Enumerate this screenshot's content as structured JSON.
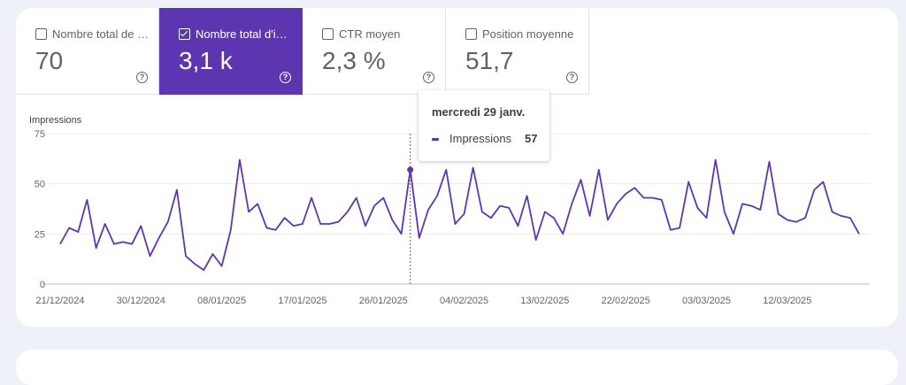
{
  "metrics": [
    {
      "label": "Nombre total de c…",
      "value": "70",
      "active": false
    },
    {
      "label": "Nombre total d'im…",
      "value": "3,1 k",
      "active": true
    },
    {
      "label": "CTR moyen",
      "value": "2,3 %",
      "active": false
    },
    {
      "label": "Position moyenne",
      "value": "51,7",
      "active": false
    }
  ],
  "chart_data": {
    "type": "line",
    "ylabel": "Impressions",
    "ylim": [
      0,
      75
    ],
    "yticks": [
      "0",
      "25",
      "50",
      "75"
    ],
    "xticks": [
      {
        "label": "21/12/2024",
        "index": 0
      },
      {
        "label": "30/12/2024",
        "index": 9
      },
      {
        "label": "08/01/2025",
        "index": 18
      },
      {
        "label": "17/01/2025",
        "index": 27
      },
      {
        "label": "26/01/2025",
        "index": 36
      },
      {
        "label": "04/02/2025",
        "index": 45
      },
      {
        "label": "13/02/2025",
        "index": 54
      },
      {
        "label": "22/02/2025",
        "index": 63
      },
      {
        "label": "03/03/2025",
        "index": 72
      },
      {
        "label": "12/03/2025",
        "index": 81
      }
    ],
    "series": [
      {
        "name": "Impressions",
        "color": "#5e35b1",
        "values": [
          20,
          28,
          26,
          42,
          18,
          30,
          20,
          21,
          20,
          29,
          14,
          23,
          31,
          47,
          14,
          10,
          7,
          15,
          9,
          27,
          62,
          36,
          40,
          28,
          27,
          33,
          29,
          30,
          43,
          30,
          30,
          31,
          36,
          43,
          29,
          39,
          43,
          32,
          25,
          57,
          23,
          37,
          44,
          57,
          30,
          35,
          58,
          36,
          33,
          39,
          38,
          29,
          44,
          22,
          36,
          33,
          25,
          40,
          52,
          34,
          57,
          32,
          40,
          45,
          48,
          43,
          43,
          42,
          27,
          28,
          51,
          38,
          33,
          62,
          36,
          25,
          40,
          39,
          37,
          61,
          35,
          32,
          31,
          33,
          47,
          51,
          36,
          34,
          33,
          25
        ]
      }
    ],
    "highlight_index": 39
  },
  "tooltip": {
    "date": "mercredi 29 janv.",
    "series": "Impressions",
    "value": "57"
  }
}
